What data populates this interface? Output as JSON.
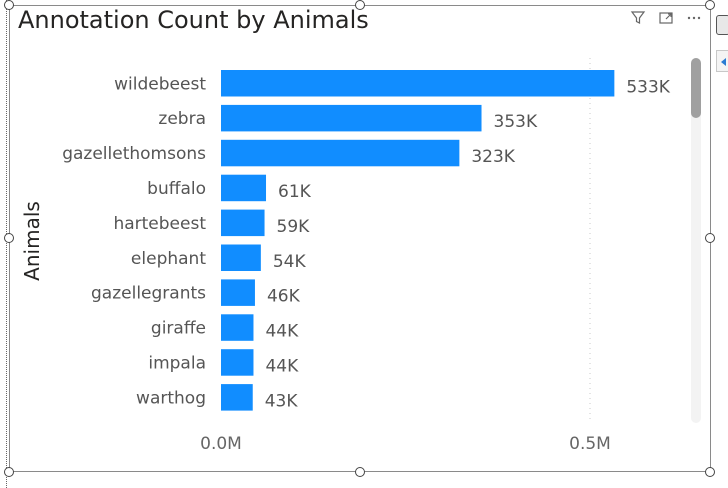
{
  "colors": {
    "bar": "#118DFF",
    "title": "#252423",
    "label": "#555555"
  },
  "header": {
    "icons": [
      "filter-icon",
      "focus-mode-icon",
      "more-options-icon"
    ]
  },
  "chart_data": {
    "type": "bar",
    "orientation": "horizontal",
    "title": "Annotation Count by Animals",
    "xlabel": "",
    "ylabel": "Animals",
    "categories": [
      "wildebeest",
      "zebra",
      "gazellethomsons",
      "buffalo",
      "hartebeest",
      "elephant",
      "gazellegrants",
      "giraffe",
      "impala",
      "warthog"
    ],
    "values": [
      533000,
      353000,
      323000,
      61000,
      59000,
      54000,
      46000,
      44000,
      44000,
      43000
    ],
    "value_labels": [
      "533K",
      "353K",
      "323K",
      "61K",
      "59K",
      "54K",
      "46K",
      "44K",
      "44K",
      "43K"
    ],
    "xlim": [
      0,
      500000
    ],
    "x_ticks": [
      0,
      500000
    ],
    "x_tick_labels": [
      "0.0M",
      "0.5M"
    ],
    "grid": "vertical dotted at 0.5M",
    "legend": "none"
  }
}
